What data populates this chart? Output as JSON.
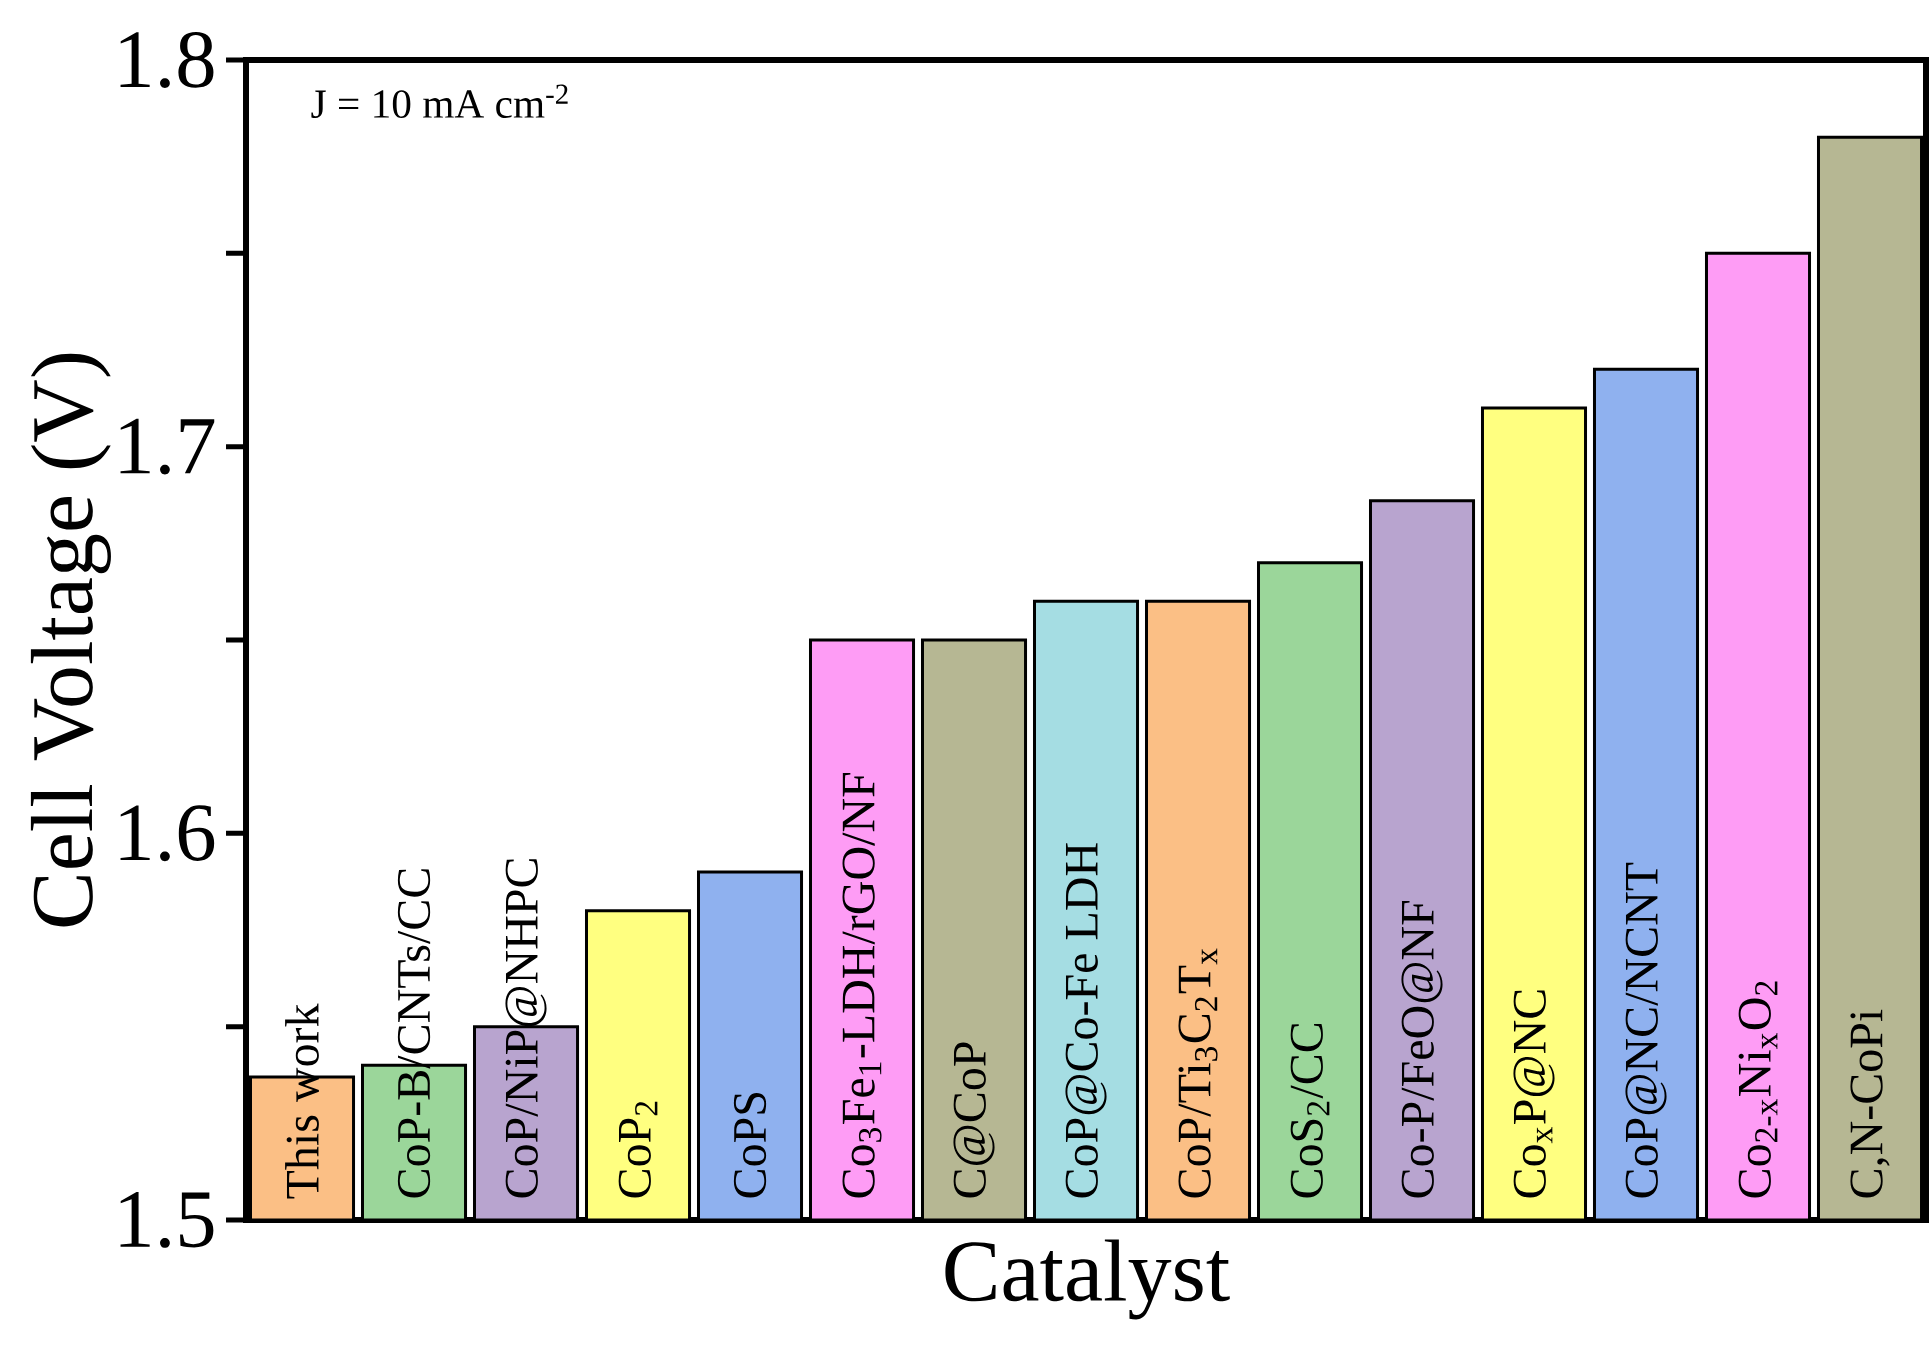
{
  "chart_data": {
    "type": "bar",
    "xlabel": "Catalyst",
    "ylabel": "Cell Voltage (V)",
    "annotations": [
      "J = 10 mA cm$^{-2}$"
    ],
    "categories": [
      "This work",
      "CoP-B/CNTs/CC",
      "CoP/NiP@NHPC",
      "CoP$_{2}$",
      "CoPS",
      "Co$_{3}$Fe$_{1}$-LDH/rGO/NF",
      "C@CoP",
      "CoP@Co-Fe LDH",
      "CoP/Ti$_{3}$C$_{2}$T$_{x}$",
      "CoS$_{2}$/CC",
      "Co-P/FeO@NF",
      "Co$_{x}$P@NC",
      "CoP@NC/NCNT",
      "Co$_{2-x}$Ni$_{x}$O$_{2}$",
      "C,N-CoPi"
    ],
    "values": [
      1.537,
      1.54,
      1.55,
      1.58,
      1.59,
      1.65,
      1.65,
      1.66,
      1.66,
      1.67,
      1.686,
      1.71,
      1.72,
      1.75,
      1.78
    ],
    "colors": [
      "#fbbf85",
      "#9bd69a",
      "#b8a4cf",
      "#ffff80",
      "#8fb1ef",
      "#fe9cf5",
      "#b6b793",
      "#a5dde3",
      "#fbbf85",
      "#9bd69a",
      "#b8a4cf",
      "#ffff80",
      "#8fb1ef",
      "#fe9cf5",
      "#b6b793"
    ],
    "ylim": [
      1.5,
      1.8
    ],
    "yticks": [
      1.5,
      {
        "value": 1.55,
        "label": null
      },
      1.6,
      {
        "value": 1.65,
        "label": null
      },
      1.7,
      {
        "value": 1.75,
        "label": null
      },
      1.8
    ]
  }
}
